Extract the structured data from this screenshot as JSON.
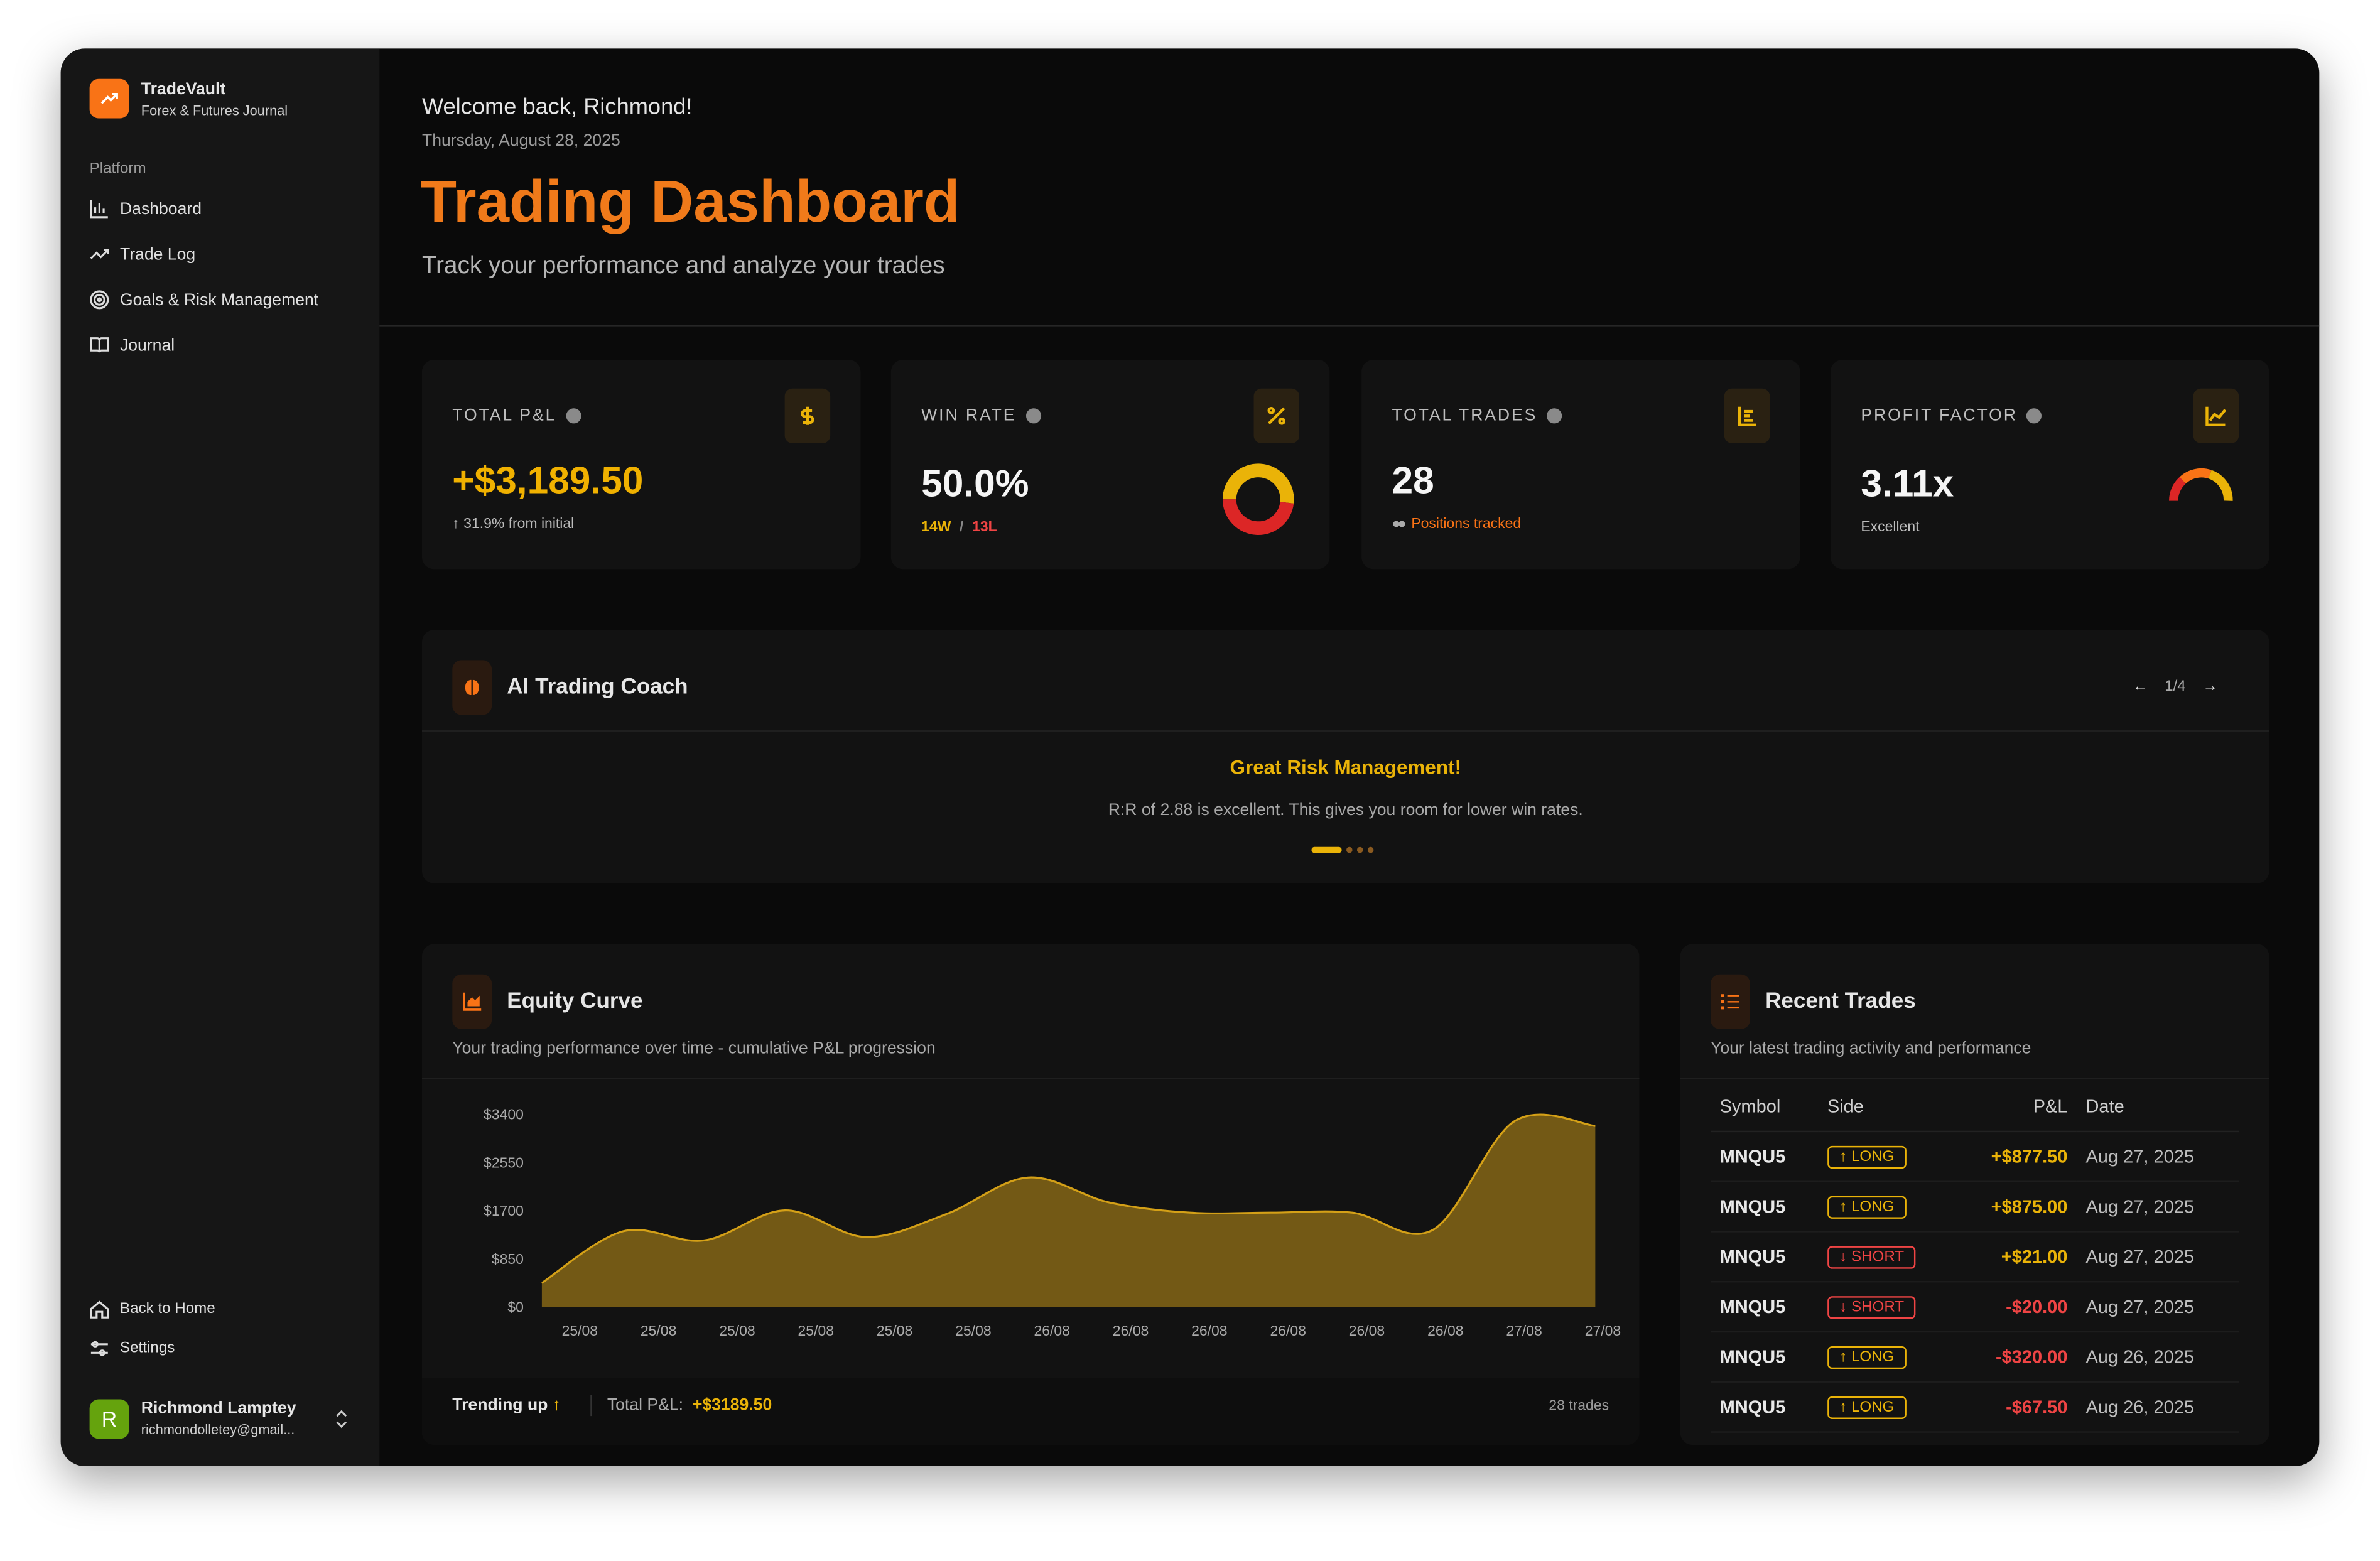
{
  "sidebar": {
    "brand": "TradeVault",
    "tagline": "Forex & Futures Journal",
    "section": "Platform",
    "nav": [
      "Dashboard",
      "Trade Log",
      "Goals & Risk Management",
      "Journal"
    ],
    "footer_nav": [
      "Back to Home",
      "Settings"
    ],
    "user": {
      "initial": "R",
      "name": "Richmond Lamptey",
      "email": "richmondolletey@gmail..."
    }
  },
  "header": {
    "welcome": "Welcome back, Richmond!",
    "date": "Thursday, August 28, 2025",
    "title": "Trading Dashboard",
    "subtitle": "Track your performance and analyze your trades"
  },
  "stats": [
    {
      "label": "TOTAL P&L",
      "value": "+$3,189.50",
      "note": "31.9% from initial"
    },
    {
      "label": "WIN RATE",
      "value": "50.0%",
      "wins": {
        "value": 14,
        "label": "14W"
      },
      "separator": "/",
      "losses": {
        "value": 13,
        "label": "13L"
      }
    },
    {
      "label": "TOTAL TRADES",
      "value": "28",
      "note": "Positions tracked"
    },
    {
      "label": "PROFIT FACTOR",
      "value": "3.11x",
      "note": "Excellent"
    }
  ],
  "coach": {
    "title": "AI Trading Coach",
    "page": "1/4",
    "headline": "Great Risk Management!",
    "message": "R:R of 2.88 is excellent. This gives you room for lower win rates."
  },
  "chart_data": {
    "type": "area",
    "title": "Equity Curve",
    "subtitle": "Your trading performance over time - cumulative P&L progression",
    "categories": [
      "25/08",
      "25/08",
      "25/08",
      "25/08",
      "25/08",
      "25/08",
      "26/08",
      "26/08",
      "26/08",
      "26/08",
      "26/08",
      "26/08",
      "27/08",
      "27/08"
    ],
    "values": [
      420,
      1330,
      1170,
      1700,
      1230,
      1640,
      2280,
      1840,
      1660,
      1660,
      1660,
      1360,
      3270,
      3189.5
    ],
    "color": "#d4a017",
    "ylim": [
      0,
      3400
    ],
    "yticks": [
      {
        "value": 0,
        "label": "$0"
      },
      {
        "value": 850,
        "label": "$850"
      },
      {
        "value": 1700,
        "label": "$1700"
      },
      {
        "value": 2550,
        "label": "$2550"
      },
      {
        "value": 3400,
        "label": "$3400"
      }
    ],
    "footer": {
      "trend": "Trending up",
      "total_label": "Total P&L:",
      "total": "+$3189.50",
      "count": "28 trades"
    }
  },
  "recent_trades": {
    "title": "Recent Trades",
    "subtitle": "Your latest trading activity and performance",
    "columns": [
      "Symbol",
      "Side",
      "P&L",
      "Date"
    ],
    "rows": [
      [
        "MNQU5",
        "LONG",
        "+$877.50",
        "Aug 27, 2025"
      ],
      [
        "MNQU5",
        "LONG",
        "+$875.00",
        "Aug 27, 2025"
      ],
      [
        "MNQU5",
        "SHORT",
        "+$21.00",
        "Aug 27, 2025"
      ],
      [
        "MNQU5",
        "SHORT",
        "-$20.00",
        "Aug 27, 2025"
      ],
      [
        "MNQU5",
        "LONG",
        "-$320.00",
        "Aug 26, 2025"
      ],
      [
        "MNQU5",
        "LONG",
        "-$67.50",
        "Aug 26, 2025"
      ]
    ]
  }
}
